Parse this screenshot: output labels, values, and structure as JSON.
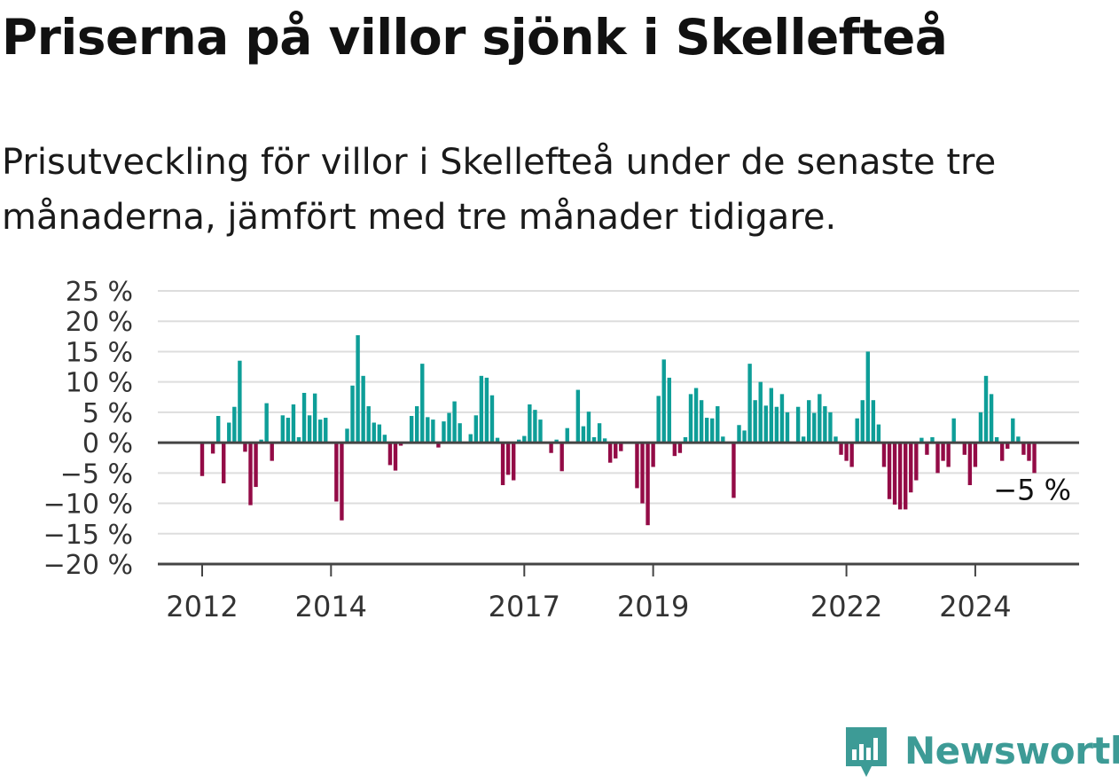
{
  "header": {
    "title": "Priserna på villor sjönk i Skellefteå",
    "subtitle": "Prisutveckling för villor i Skellefteå under de senaste tre månaderna, jämfört med tre månader tidigare."
  },
  "brand": {
    "name": "Newsworthy",
    "icon": "newsworthy-logo-icon",
    "color": "#3d9b96"
  },
  "chart_data": {
    "type": "bar",
    "title": "",
    "xlabel": "",
    "ylabel": "",
    "ylim": [
      -20,
      25
    ],
    "y_ticks": [
      {
        "value": 25,
        "label": "25 %"
      },
      {
        "value": 20,
        "label": "20 %"
      },
      {
        "value": 15,
        "label": "15 %"
      },
      {
        "value": 10,
        "label": "10 %"
      },
      {
        "value": 5,
        "label": "5 %"
      },
      {
        "value": 0,
        "label": "0 %"
      },
      {
        "value": -5,
        "label": "−5 %"
      },
      {
        "value": -10,
        "label": "−10 %"
      },
      {
        "value": -15,
        "label": "−15 %"
      },
      {
        "value": -20,
        "label": "−20 %"
      }
    ],
    "x_ticks": [
      {
        "index": 0,
        "label": "2012"
      },
      {
        "index": 24,
        "label": "2014"
      },
      {
        "index": 60,
        "label": "2017"
      },
      {
        "index": 84,
        "label": "2019"
      },
      {
        "index": 120,
        "label": "2022"
      },
      {
        "index": 144,
        "label": "2024"
      }
    ],
    "grid": true,
    "legend": "none",
    "colors": {
      "positive": "#0e9e98",
      "negative": "#930b46",
      "grid": "#dddddd",
      "axis": "#444444"
    },
    "annotation": {
      "index": 155,
      "value": -5,
      "label": "−5 %"
    },
    "values": [
      -5.5,
      0,
      -1.8,
      4.4,
      -6.7,
      3.3,
      5.9,
      13.5,
      -1.5,
      -10.3,
      -7.3,
      0.5,
      6.5,
      -3.0,
      0,
      4.5,
      4.1,
      6.3,
      0.9,
      8.2,
      4.5,
      8.1,
      3.8,
      4.1,
      0,
      -9.7,
      -12.8,
      2.3,
      9.4,
      17.7,
      11.0,
      6.0,
      3.3,
      3.0,
      1.3,
      -3.7,
      -4.6,
      -0.5,
      0,
      4.4,
      6.0,
      13.0,
      4.2,
      3.8,
      -0.8,
      3.5,
      4.9,
      6.8,
      3.2,
      0,
      1.4,
      4.5,
      11.0,
      10.7,
      7.8,
      0.8,
      -7.0,
      -5.3,
      -6.2,
      0.5,
      1.1,
      6.3,
      5.4,
      3.8,
      0,
      -1.7,
      0.5,
      -4.7,
      2.4,
      0,
      8.7,
      2.7,
      5.1,
      0.9,
      3.2,
      0.7,
      -3.3,
      -2.6,
      -1.4,
      0,
      0,
      -7.5,
      -10.0,
      -13.6,
      -4.0,
      7.7,
      13.7,
      10.7,
      -2.2,
      -1.7,
      0.9,
      8.0,
      9.0,
      7.0,
      4.1,
      4.0,
      6.0,
      1.0,
      0,
      -9.1,
      2.9,
      2.0,
      13.0,
      7.0,
      10.0,
      6.1,
      9.0,
      5.9,
      8.0,
      5.0,
      0,
      5.9,
      1.0,
      7.0,
      4.9,
      8.0,
      6.0,
      5.0,
      1.0,
      -2.0,
      -3.0,
      -4.0,
      4.0,
      7.0,
      15.0,
      7.0,
      3.0,
      -4.0,
      -9.3,
      -10.2,
      -11.0,
      -11.0,
      -8.2,
      -6.2,
      0.8,
      -2.0,
      0.9,
      -5.0,
      -3.0,
      -4.0,
      4.0,
      0,
      -2.0,
      -7.0,
      -4.0,
      5.0,
      11.0,
      8.0,
      0.9,
      -3.0,
      -1.0,
      4.0,
      1.0,
      -2.0,
      -3.0,
      -5.0
    ]
  }
}
